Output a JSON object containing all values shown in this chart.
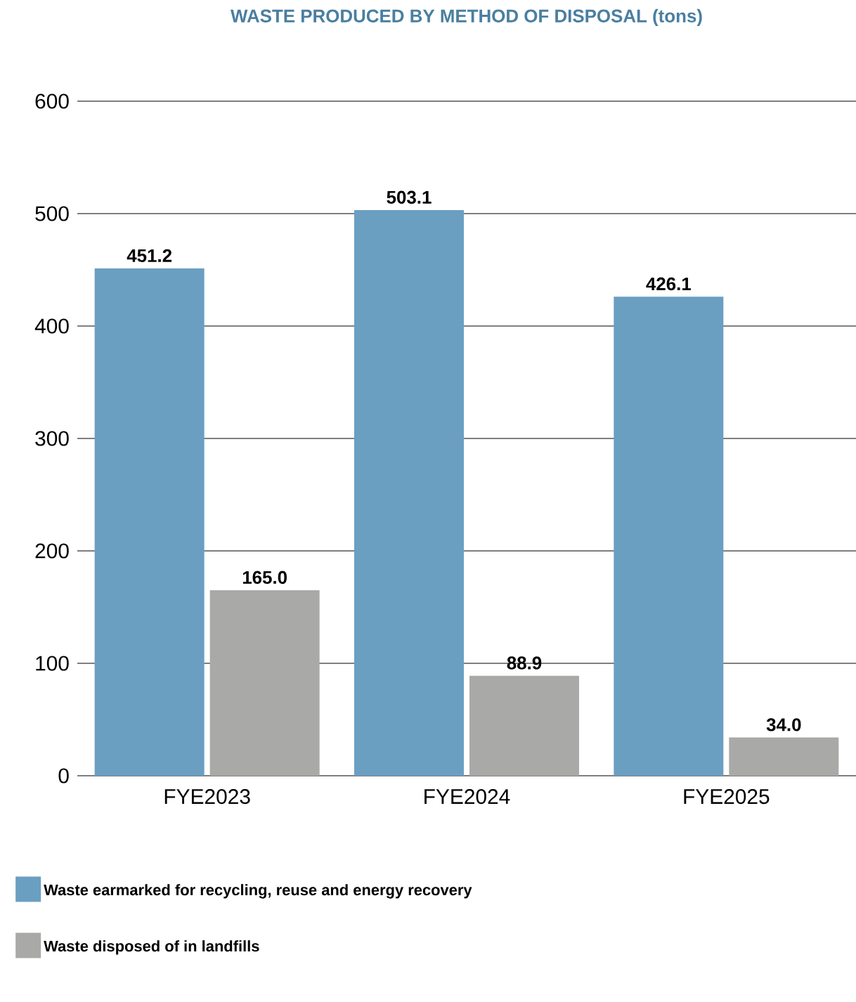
{
  "chart_data": {
    "type": "bar",
    "title": "WASTE PRODUCED BY METHOD OF DISPOSAL (tons)",
    "categories": [
      "FYE2023",
      "FYE2024",
      "FYE2025"
    ],
    "series": [
      {
        "name": "Waste earmarked for recycling, reuse and energy recovery",
        "color": "#6a9fc2",
        "values": [
          451.2,
          503.1,
          426.1
        ],
        "value_labels": [
          "451.2",
          "503.1",
          "426.1"
        ]
      },
      {
        "name": "Waste disposed of in landfills",
        "color": "#a9a9a7",
        "values": [
          165.0,
          88.9,
          34.0
        ],
        "value_labels": [
          "165.0",
          "88.9",
          "34.0"
        ]
      }
    ],
    "ylim": [
      0,
      600
    ],
    "yticks": [
      0,
      100,
      200,
      300,
      400,
      500,
      600
    ],
    "grid": "y",
    "legend": "bottom"
  }
}
